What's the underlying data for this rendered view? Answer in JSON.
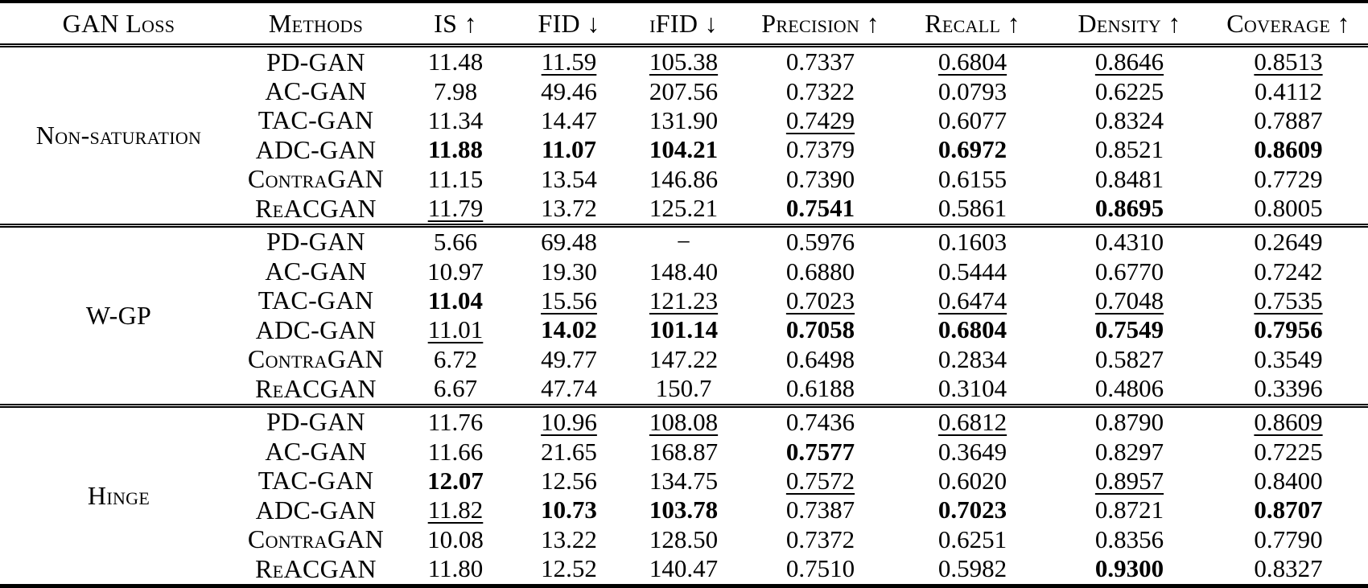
{
  "table": {
    "headers": [
      "GAN Loss",
      "Methods",
      "IS ↑",
      "FID ↓",
      "iFID ↓",
      "Precision ↑",
      "Recall ↑",
      "Density ↑",
      "Coverage ↑"
    ],
    "groups": [
      {
        "loss": "Non-saturation",
        "rows": [
          {
            "method": "PD-GAN",
            "values": [
              "11.48",
              "11.59",
              "105.38",
              "0.7337",
              "0.6804",
              "0.8646",
              "0.8513"
            ],
            "styles": [
              "",
              "u",
              "u",
              "",
              "u",
              "u",
              "u"
            ]
          },
          {
            "method": "AC-GAN",
            "values": [
              "7.98",
              "49.46",
              "207.56",
              "0.7322",
              "0.0793",
              "0.6225",
              "0.4112"
            ],
            "styles": [
              "",
              "",
              "",
              "",
              "",
              "",
              ""
            ]
          },
          {
            "method": "TAC-GAN",
            "values": [
              "11.34",
              "14.47",
              "131.90",
              "0.7429",
              "0.6077",
              "0.8324",
              "0.7887"
            ],
            "styles": [
              "",
              "",
              "",
              "u",
              "",
              "",
              ""
            ]
          },
          {
            "method": "ADC-GAN",
            "values": [
              "11.88",
              "11.07",
              "104.21",
              "0.7379",
              "0.6972",
              "0.8521",
              "0.8609"
            ],
            "styles": [
              "b",
              "b",
              "b",
              "",
              "b",
              "",
              "b"
            ]
          },
          {
            "method": "ContraGAN",
            "values": [
              "11.15",
              "13.54",
              "146.86",
              "0.7390",
              "0.6155",
              "0.8481",
              "0.7729"
            ],
            "styles": [
              "",
              "",
              "",
              "",
              "",
              "",
              ""
            ]
          },
          {
            "method": "ReACGAN",
            "values": [
              "11.79",
              "13.72",
              "125.21",
              "0.7541",
              "0.5861",
              "0.8695",
              "0.8005"
            ],
            "styles": [
              "u",
              "",
              "",
              "b",
              "",
              "b",
              ""
            ]
          }
        ]
      },
      {
        "loss": "W-GP",
        "rows": [
          {
            "method": "PD-GAN",
            "values": [
              "5.66",
              "69.48",
              "−",
              "0.5976",
              "0.1603",
              "0.4310",
              "0.2649"
            ],
            "styles": [
              "",
              "",
              "",
              "",
              "",
              "",
              ""
            ]
          },
          {
            "method": "AC-GAN",
            "values": [
              "10.97",
              "19.30",
              "148.40",
              "0.6880",
              "0.5444",
              "0.6770",
              "0.7242"
            ],
            "styles": [
              "",
              "",
              "",
              "",
              "",
              "",
              ""
            ]
          },
          {
            "method": "TAC-GAN",
            "values": [
              "11.04",
              "15.56",
              "121.23",
              "0.7023",
              "0.6474",
              "0.7048",
              "0.7535"
            ],
            "styles": [
              "b",
              "u",
              "u",
              "u",
              "u",
              "u",
              "u"
            ]
          },
          {
            "method": "ADC-GAN",
            "values": [
              "11.01",
              "14.02",
              "101.14",
              "0.7058",
              "0.6804",
              "0.7549",
              "0.7956"
            ],
            "styles": [
              "u",
              "b",
              "b",
              "b",
              "b",
              "b",
              "b"
            ]
          },
          {
            "method": "ContraGAN",
            "values": [
              "6.72",
              "49.77",
              "147.22",
              "0.6498",
              "0.2834",
              "0.5827",
              "0.3549"
            ],
            "styles": [
              "",
              "",
              "",
              "",
              "",
              "",
              ""
            ]
          },
          {
            "method": "ReACGAN",
            "values": [
              "6.67",
              "47.74",
              "150.7",
              "0.6188",
              "0.3104",
              "0.4806",
              "0.3396"
            ],
            "styles": [
              "",
              "",
              "",
              "",
              "",
              "",
              ""
            ]
          }
        ]
      },
      {
        "loss": "Hinge",
        "rows": [
          {
            "method": "PD-GAN",
            "values": [
              "11.76",
              "10.96",
              "108.08",
              "0.7436",
              "0.6812",
              "0.8790",
              "0.8609"
            ],
            "styles": [
              "",
              "u",
              "u",
              "",
              "u",
              "",
              "u"
            ]
          },
          {
            "method": "AC-GAN",
            "values": [
              "11.66",
              "21.65",
              "168.87",
              "0.7577",
              "0.3649",
              "0.8297",
              "0.7225"
            ],
            "styles": [
              "",
              "",
              "",
              "b",
              "",
              "",
              ""
            ]
          },
          {
            "method": "TAC-GAN",
            "values": [
              "12.07",
              "12.56",
              "134.75",
              "0.7572",
              "0.6020",
              "0.8957",
              "0.8400"
            ],
            "styles": [
              "b",
              "",
              "",
              "u",
              "",
              "u",
              ""
            ]
          },
          {
            "method": "ADC-GAN",
            "values": [
              "11.82",
              "10.73",
              "103.78",
              "0.7387",
              "0.7023",
              "0.8721",
              "0.8707"
            ],
            "styles": [
              "u",
              "b",
              "b",
              "",
              "b",
              "",
              "b"
            ]
          },
          {
            "method": "ContraGAN",
            "values": [
              "10.08",
              "13.22",
              "128.50",
              "0.7372",
              "0.6251",
              "0.8356",
              "0.7790"
            ],
            "styles": [
              "",
              "",
              "",
              "",
              "",
              "",
              ""
            ]
          },
          {
            "method": "ReACGAN",
            "values": [
              "11.80",
              "12.52",
              "140.47",
              "0.7510",
              "0.5982",
              "0.9300",
              "0.8327"
            ],
            "styles": [
              "",
              "",
              "",
              "",
              "",
              "b",
              ""
            ]
          }
        ]
      }
    ]
  }
}
